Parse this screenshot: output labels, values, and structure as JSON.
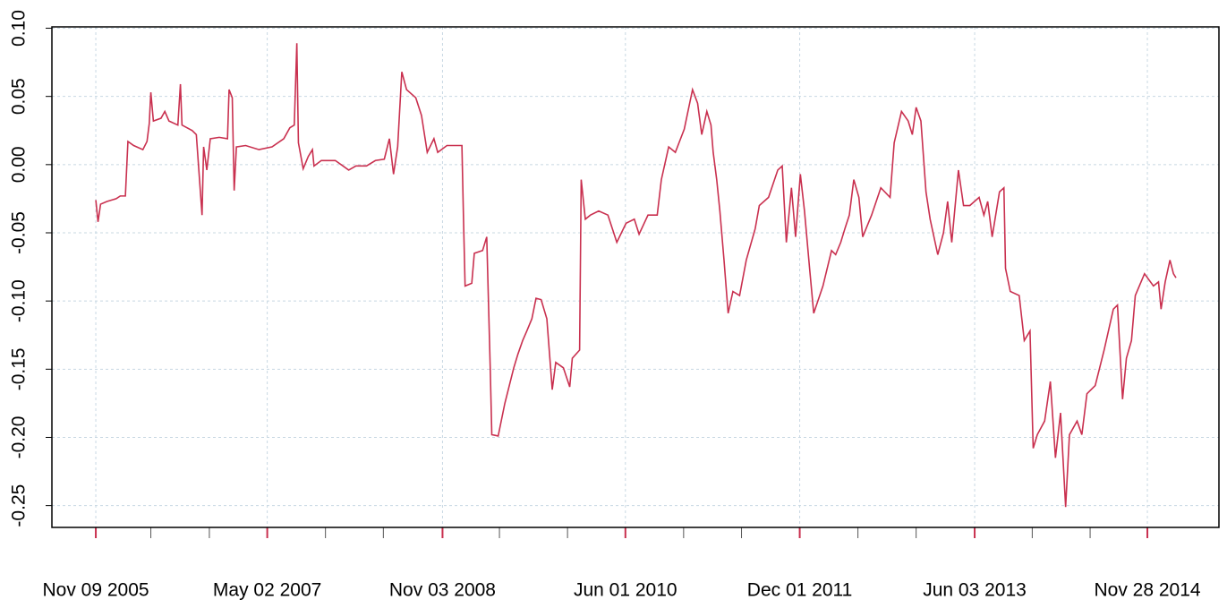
{
  "chart_data": {
    "type": "line",
    "x": [
      "2005-11-09",
      "2005-11-16",
      "2005-11-24",
      "2005-12-14",
      "2006-01-12",
      "2006-01-25",
      "2006-02-10",
      "2006-02-18",
      "2006-03-08",
      "2006-04-06",
      "2006-04-19",
      "2006-04-26",
      "2006-05-01",
      "2006-05-09",
      "2006-06-02",
      "2006-06-14",
      "2006-06-27",
      "2006-07-25",
      "2006-08-02",
      "2006-08-07",
      "2006-09-08",
      "2006-09-21",
      "2006-10-09",
      "2006-10-14",
      "2006-10-24",
      "2006-11-04",
      "2006-12-02",
      "2006-12-28",
      "2007-01-02",
      "2007-01-12",
      "2007-01-18",
      "2007-01-25",
      "2007-02-23",
      "2007-04-06",
      "2007-05-17",
      "2007-06-23",
      "2007-07-12",
      "2007-07-26",
      "2007-08-03",
      "2007-08-08",
      "2007-08-23",
      "2007-09-08",
      "2007-09-21",
      "2007-09-26",
      "2007-10-19",
      "2007-12-02",
      "2008-01-13",
      "2008-02-05",
      "2008-03-09",
      "2008-04-06",
      "2008-05-04",
      "2008-05-20",
      "2008-06-02",
      "2008-06-15",
      "2008-06-28",
      "2008-07-13",
      "2008-08-11",
      "2008-08-29",
      "2008-09-16",
      "2008-10-07",
      "2008-10-19",
      "2008-11-17",
      "2009-01-03",
      "2009-01-08",
      "2009-01-13",
      "2009-02-03",
      "2009-02-11",
      "2009-03-09",
      "2009-03-22",
      "2009-04-02",
      "2009-04-07",
      "2009-04-27",
      "2009-05-18",
      "2009-06-15",
      "2009-06-28",
      "2009-07-13",
      "2009-07-26",
      "2009-08-11",
      "2009-08-24",
      "2009-09-09",
      "2009-09-27",
      "2009-10-14",
      "2009-10-25",
      "2009-11-18",
      "2009-12-08",
      "2009-12-16",
      "2010-01-08",
      "2010-01-13",
      "2010-01-26",
      "2010-02-11",
      "2010-03-09",
      "2010-04-07",
      "2010-05-05",
      "2010-06-03",
      "2010-06-29",
      "2010-07-14",
      "2010-08-11",
      "2010-09-09",
      "2010-09-22",
      "2010-10-15",
      "2010-11-05",
      "2010-12-03",
      "2010-12-29",
      "2011-01-14",
      "2011-01-27",
      "2011-02-12",
      "2011-02-25",
      "2011-03-04",
      "2011-03-15",
      "2011-03-25",
      "2011-04-07",
      "2011-04-20",
      "2011-05-05",
      "2011-05-26",
      "2011-06-16",
      "2011-07-14",
      "2011-07-27",
      "2011-08-25",
      "2011-09-23",
      "2011-10-07",
      "2011-10-20",
      "2011-11-05",
      "2011-11-18",
      "2011-12-03",
      "2011-12-16",
      "2012-01-01",
      "2012-01-14",
      "2012-02-12",
      "2012-03-10",
      "2012-03-23",
      "2012-04-08",
      "2012-04-21",
      "2012-05-05",
      "2012-05-19",
      "2012-06-04",
      "2012-06-16",
      "2012-07-14",
      "2012-08-12",
      "2012-09-10",
      "2012-09-23",
      "2012-10-16",
      "2012-11-06",
      "2012-11-19",
      "2012-12-01",
      "2012-12-16",
      "2013-01-01",
      "2013-01-14",
      "2013-02-07",
      "2013-02-25",
      "2013-03-10",
      "2013-03-23",
      "2013-04-13",
      "2013-04-29",
      "2013-05-19",
      "2013-06-17",
      "2013-07-02",
      "2013-07-14",
      "2013-07-28",
      "2013-08-20",
      "2013-09-03",
      "2013-09-08",
      "2013-09-23",
      "2013-10-21",
      "2013-11-06",
      "2013-11-24",
      "2013-12-04",
      "2013-12-17",
      "2014-01-09",
      "2014-01-27",
      "2014-02-12",
      "2014-02-28",
      "2014-03-16",
      "2014-03-28",
      "2014-04-21",
      "2014-05-06",
      "2014-05-22",
      "2014-06-17",
      "2014-07-15",
      "2014-08-13",
      "2014-08-26",
      "2014-09-11",
      "2014-09-23",
      "2014-10-09",
      "2014-10-21",
      "2014-11-19",
      "2014-12-17",
      "2015-01-02",
      "2015-01-10",
      "2015-01-23",
      "2015-02-07",
      "2015-02-18",
      "2015-02-26"
    ],
    "series": [
      {
        "color": "#c9304f",
        "values": [
          -0.026,
          -0.042,
          -0.029,
          -0.027,
          -0.025,
          -0.023,
          -0.023,
          0.017,
          0.014,
          0.011,
          0.017,
          0.03,
          0.053,
          0.032,
          0.034,
          0.039,
          0.032,
          0.029,
          0.059,
          0.029,
          0.025,
          0.022,
          -0.037,
          0.013,
          -0.004,
          0.019,
          0.02,
          0.019,
          0.055,
          0.049,
          -0.019,
          0.013,
          0.014,
          0.011,
          0.013,
          0.019,
          0.027,
          0.029,
          0.089,
          0.016,
          -0.003,
          0.006,
          0.011,
          -0.001,
          0.003,
          0.003,
          -0.004,
          -0.001,
          -0.001,
          0.003,
          0.004,
          0.019,
          -0.007,
          0.013,
          0.068,
          0.055,
          0.049,
          0.036,
          0.009,
          0.019,
          0.009,
          0.014,
          0.014,
          -0.04,
          -0.089,
          -0.087,
          -0.065,
          -0.063,
          -0.053,
          -0.149,
          -0.198,
          -0.199,
          -0.175,
          -0.149,
          -0.139,
          -0.129,
          -0.122,
          -0.113,
          -0.098,
          -0.099,
          -0.113,
          -0.165,
          -0.145,
          -0.149,
          -0.163,
          -0.142,
          -0.136,
          -0.011,
          -0.04,
          -0.037,
          -0.034,
          -0.037,
          -0.057,
          -0.043,
          -0.04,
          -0.051,
          -0.037,
          -0.037,
          -0.011,
          0.013,
          0.009,
          0.026,
          0.055,
          0.045,
          0.022,
          0.039,
          0.029,
          0.009,
          -0.011,
          -0.034,
          -0.07,
          -0.109,
          -0.093,
          -0.096,
          -0.07,
          -0.047,
          -0.03,
          -0.024,
          -0.004,
          -0.001,
          -0.057,
          -0.017,
          -0.053,
          -0.007,
          -0.034,
          -0.076,
          -0.109,
          -0.089,
          -0.063,
          -0.066,
          -0.057,
          -0.047,
          -0.037,
          -0.011,
          -0.024,
          -0.053,
          -0.037,
          -0.017,
          -0.024,
          0.016,
          0.039,
          0.032,
          0.022,
          0.042,
          0.032,
          -0.02,
          -0.04,
          -0.066,
          -0.05,
          -0.027,
          -0.057,
          -0.004,
          -0.03,
          -0.03,
          -0.024,
          -0.037,
          -0.027,
          -0.053,
          -0.02,
          -0.017,
          -0.076,
          -0.093,
          -0.096,
          -0.129,
          -0.122,
          -0.208,
          -0.198,
          -0.188,
          -0.159,
          -0.215,
          -0.182,
          -0.251,
          -0.198,
          -0.188,
          -0.198,
          -0.168,
          -0.162,
          -0.136,
          -0.106,
          -0.103,
          -0.172,
          -0.142,
          -0.129,
          -0.096,
          -0.08,
          -0.089,
          -0.086,
          -0.106,
          -0.086,
          -0.07,
          -0.08,
          -0.083
        ]
      }
    ],
    "xlim": [
      "2005-06-24",
      "2015-07-11"
    ],
    "xticks": [
      {
        "value": "2005-11-09",
        "label": "Nov 09 2005"
      },
      {
        "value": "2007-05-02",
        "label": "May 02 2007"
      },
      {
        "value": "2008-11-03",
        "label": "Nov 03 2008"
      },
      {
        "value": "2010-06-01",
        "label": "Jun 01 2010"
      },
      {
        "value": "2011-12-01",
        "label": "Dec 01 2011"
      },
      {
        "value": "2013-06-03",
        "label": "Jun 03 2013"
      },
      {
        "value": "2014-11-28",
        "label": "Nov 28 2014"
      }
    ],
    "xminorticks": [
      "2006-05-01",
      "2006-11-01",
      "2007-11-01",
      "2008-05-01",
      "2009-05-01",
      "2009-12-01",
      "2010-12-01",
      "2011-06-01",
      "2012-06-01",
      "2012-12-01",
      "2013-12-01",
      "2014-06-01"
    ],
    "ylim": [
      -0.266,
      0.101
    ],
    "yticks": [
      {
        "value": 0.1,
        "label": "0.10"
      },
      0.05,
      {
        "value": 0,
        "label": "0.00"
      },
      -0.05,
      {
        "value": -0.1,
        "label": "-0.10"
      },
      -0.15,
      {
        "value": -0.2,
        "label": "-0.20"
      },
      -0.25
    ],
    "grid": true
  }
}
